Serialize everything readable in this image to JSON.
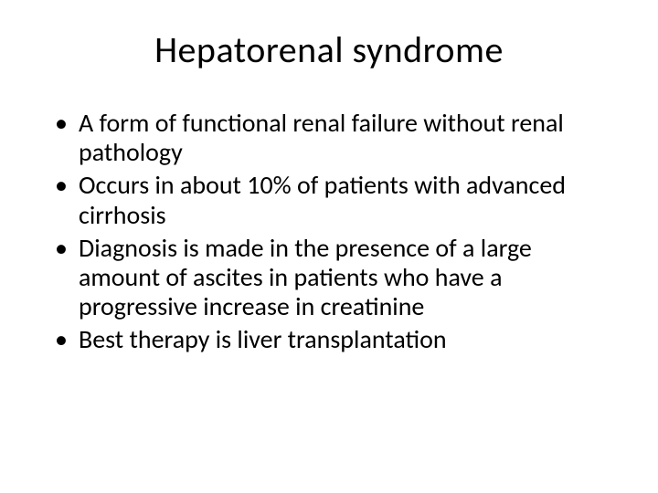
{
  "slide": {
    "title": "Hepatorenal syndrome",
    "bullets": [
      "A form of functional renal failure without renal pathology",
      "Occurs in about 10% of patients with advanced cirrhosis",
      "Diagnosis is made in the presence of a large amount of ascites in patients who have a progressive increase in creatinine",
      "Best therapy is liver transplantation"
    ],
    "title_fontsize": 40,
    "body_fontsize": 28,
    "text_color": "#000000",
    "background_color": "#ffffff"
  }
}
